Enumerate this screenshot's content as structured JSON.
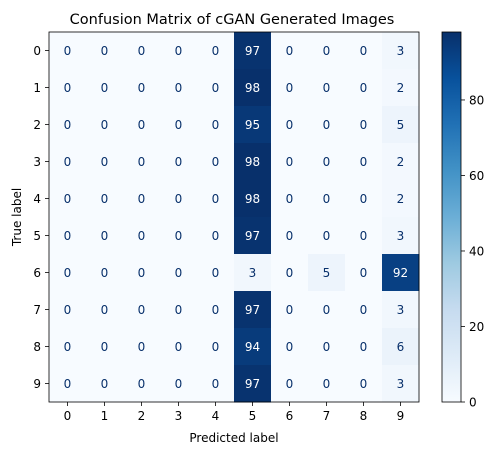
{
  "chart_data": {
    "type": "heatmap",
    "title": "Confusion Matrix of cGAN Generated Images",
    "xlabel": "Predicted label",
    "ylabel": "True label",
    "x_categories": [
      "0",
      "1",
      "2",
      "3",
      "4",
      "5",
      "6",
      "7",
      "8",
      "9"
    ],
    "y_categories": [
      "0",
      "1",
      "2",
      "3",
      "4",
      "5",
      "6",
      "7",
      "8",
      "9"
    ],
    "values": [
      [
        0,
        0,
        0,
        0,
        0,
        97,
        0,
        0,
        0,
        3
      ],
      [
        0,
        0,
        0,
        0,
        0,
        98,
        0,
        0,
        0,
        2
      ],
      [
        0,
        0,
        0,
        0,
        0,
        95,
        0,
        0,
        0,
        5
      ],
      [
        0,
        0,
        0,
        0,
        0,
        98,
        0,
        0,
        0,
        2
      ],
      [
        0,
        0,
        0,
        0,
        0,
        98,
        0,
        0,
        0,
        2
      ],
      [
        0,
        0,
        0,
        0,
        0,
        97,
        0,
        0,
        0,
        3
      ],
      [
        0,
        0,
        0,
        0,
        0,
        3,
        0,
        5,
        0,
        92
      ],
      [
        0,
        0,
        0,
        0,
        0,
        97,
        0,
        0,
        0,
        3
      ],
      [
        0,
        0,
        0,
        0,
        0,
        94,
        0,
        0,
        0,
        6
      ],
      [
        0,
        0,
        0,
        0,
        0,
        97,
        0,
        0,
        0,
        3
      ]
    ],
    "colormap": "Blues",
    "colorbar": {
      "range": [
        0,
        98
      ],
      "ticks": [
        0,
        20,
        40,
        60,
        80
      ]
    },
    "grid": false
  }
}
